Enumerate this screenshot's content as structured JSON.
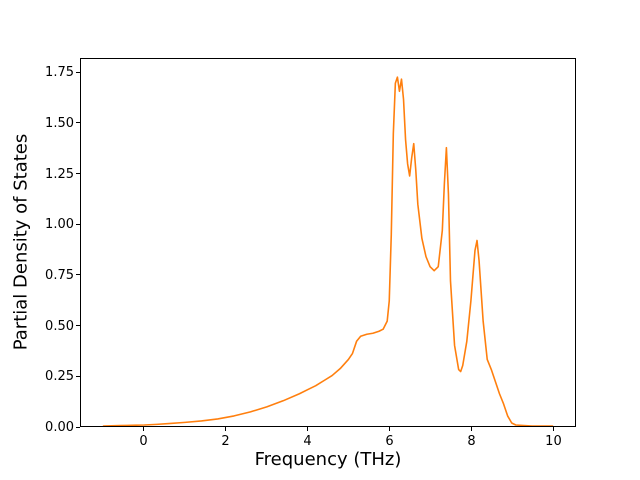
{
  "chart_data": {
    "type": "line",
    "title": "",
    "xlabel": "Frequency (THz)",
    "ylabel": "Partial Density of States",
    "xlim": [
      -1.55,
      10.55
    ],
    "ylim": [
      0,
      1.82
    ],
    "grid": false,
    "line_color": "#ff7f0e",
    "xticks": {
      "values": [
        0,
        2,
        4,
        6,
        8,
        10
      ],
      "labels": [
        "0",
        "2",
        "4",
        "6",
        "8",
        "10"
      ]
    },
    "yticks": {
      "values": [
        0,
        0.25,
        0.5,
        0.75,
        1.0,
        1.25,
        1.5,
        1.75
      ],
      "labels": [
        "0.00",
        "0.25",
        "0.50",
        "0.75",
        "1.00",
        "1.25",
        "1.50",
        "1.75"
      ]
    },
    "series": [
      {
        "name": "partial-density-of-states",
        "color": "#ff7f0e",
        "x": [
          -1.0,
          -0.6,
          -0.2,
          0.0,
          0.3,
          0.6,
          1.0,
          1.4,
          1.8,
          2.2,
          2.6,
          3.0,
          3.4,
          3.8,
          4.0,
          4.2,
          4.4,
          4.6,
          4.8,
          5.0,
          5.1,
          5.2,
          5.3,
          5.45,
          5.6,
          5.75,
          5.85,
          5.95,
          6.0,
          6.05,
          6.1,
          6.15,
          6.2,
          6.25,
          6.3,
          6.35,
          6.4,
          6.45,
          6.5,
          6.55,
          6.6,
          6.65,
          6.7,
          6.8,
          6.9,
          7.0,
          7.1,
          7.2,
          7.3,
          7.35,
          7.4,
          7.45,
          7.5,
          7.6,
          7.7,
          7.75,
          7.8,
          7.9,
          8.0,
          8.1,
          8.15,
          8.2,
          8.3,
          8.4,
          8.5,
          8.6,
          8.7,
          8.8,
          8.9,
          9.0,
          9.1,
          9.5,
          10.0
        ],
        "y": [
          0.0,
          0.002,
          0.004,
          0.005,
          0.008,
          0.012,
          0.018,
          0.025,
          0.035,
          0.05,
          0.07,
          0.095,
          0.125,
          0.16,
          0.18,
          0.2,
          0.225,
          0.25,
          0.285,
          0.33,
          0.36,
          0.42,
          0.445,
          0.455,
          0.46,
          0.47,
          0.48,
          0.52,
          0.62,
          0.95,
          1.45,
          1.7,
          1.73,
          1.66,
          1.72,
          1.62,
          1.42,
          1.3,
          1.24,
          1.33,
          1.4,
          1.27,
          1.1,
          0.93,
          0.84,
          0.79,
          0.77,
          0.79,
          0.97,
          1.2,
          1.38,
          1.15,
          0.72,
          0.4,
          0.28,
          0.27,
          0.3,
          0.42,
          0.62,
          0.87,
          0.92,
          0.82,
          0.52,
          0.33,
          0.28,
          0.22,
          0.16,
          0.11,
          0.05,
          0.015,
          0.005,
          0.0,
          0.0
        ]
      }
    ]
  }
}
